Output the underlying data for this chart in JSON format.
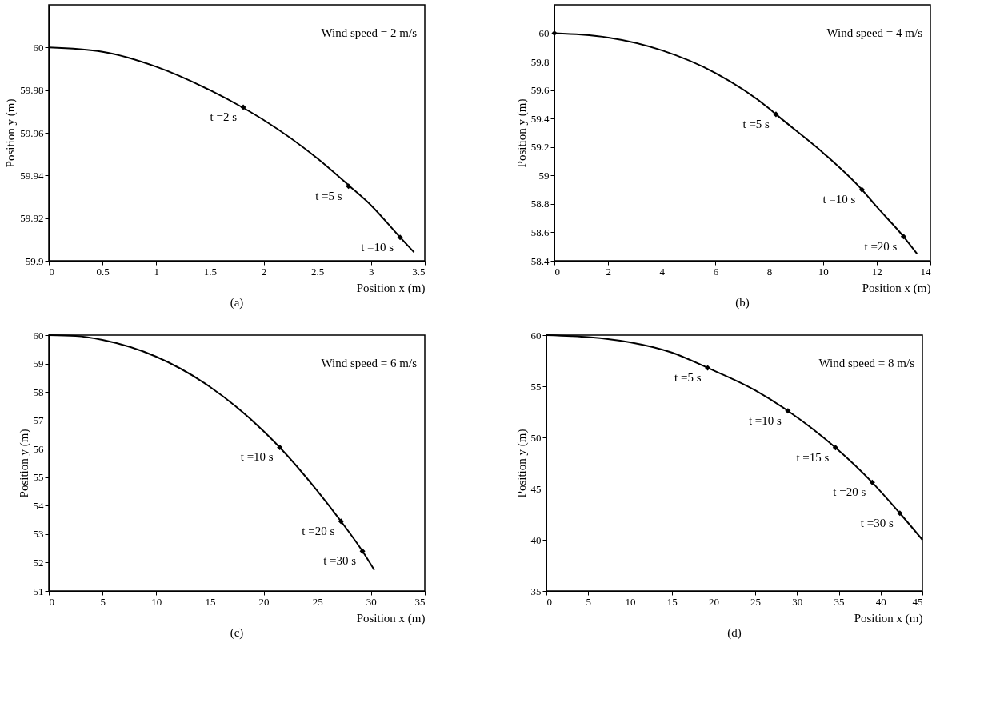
{
  "chart_data": [
    {
      "type": "line",
      "xlabel": "Position x (m)",
      "ylabel": "Position y (m)",
      "xlim": [
        0,
        3.5
      ],
      "ylim": [
        59.9,
        60.02
      ],
      "xticks": [
        0,
        0.5,
        1,
        1.5,
        2,
        2.5,
        3,
        3.5
      ],
      "yticks": [
        59.9,
        59.92,
        59.94,
        59.96,
        59.98,
        60
      ],
      "grid": false,
      "line_style": "solid",
      "series": [
        {
          "type": "line",
          "marker": "none",
          "color": "#000000",
          "x": [
            0,
            0.5,
            1,
            1.5,
            1.8,
            2,
            2.5,
            2.8,
            3,
            3.27,
            3.4
          ],
          "values": [
            60,
            59.998,
            59.991,
            59.98,
            59.972,
            59.966,
            59.948,
            59.935,
            59.926,
            59.911,
            59.904
          ]
        },
        {
          "type": "scatter",
          "marker": "diamond",
          "color": "#000000",
          "x": [
            1.81,
            2.79,
            3.27
          ],
          "values": [
            59.972,
            59.935,
            59.911
          ]
        }
      ],
      "annotations": [
        "Wind speed = 2 m/s",
        "(a)",
        {
          "text": "t =2 s",
          "x": 1.81,
          "y": 59.972
        },
        {
          "text": "t =5 s",
          "x": 2.79,
          "y": 59.935
        },
        {
          "text": "t =10 s",
          "x": 3.27,
          "y": 59.911
        }
      ]
    },
    {
      "type": "line",
      "xlabel": "Position x (m)",
      "ylabel": "Position y (m)",
      "xlim": [
        0,
        14
      ],
      "ylim": [
        58.4,
        60.2
      ],
      "xticks": [
        0,
        2,
        4,
        6,
        8,
        10,
        12,
        14
      ],
      "yticks": [
        58.4,
        58.6,
        58.8,
        59,
        59.2,
        59.4,
        59.6,
        59.8,
        60
      ],
      "grid": false,
      "line_style": "solid",
      "series": [
        {
          "type": "line",
          "marker": "none",
          "color": "#000000",
          "x": [
            0,
            1,
            2,
            4,
            6,
            8,
            8.25,
            10,
            11.45,
            12,
            13,
            13.5
          ],
          "values": [
            60,
            59.99,
            59.97,
            59.88,
            59.72,
            59.47,
            59.43,
            59.16,
            58.9,
            58.78,
            58.57,
            58.45
          ]
        },
        {
          "type": "scatter",
          "marker": "diamond",
          "color": "#000000",
          "x": [
            0,
            8.25,
            11.45,
            13.0
          ],
          "values": [
            60,
            59.43,
            58.9,
            58.57
          ]
        }
      ],
      "annotations": [
        "Wind speed = 4 m/s",
        "(b)",
        {
          "text": "t =5 s",
          "x": 8.25,
          "y": 59.43
        },
        {
          "text": "t =10 s",
          "x": 11.45,
          "y": 58.9
        },
        {
          "text": "t =20 s",
          "x": 13.0,
          "y": 58.57
        }
      ]
    },
    {
      "type": "line",
      "xlabel": "Position x (m)",
      "ylabel": "Position y (m)",
      "xlim": [
        0,
        35
      ],
      "ylim": [
        51,
        60
      ],
      "xticks": [
        0,
        5,
        10,
        15,
        20,
        25,
        30,
        35
      ],
      "yticks": [
        51,
        52,
        53,
        54,
        55,
        56,
        57,
        58,
        59,
        60
      ],
      "grid": false,
      "line_style": "solid",
      "series": [
        {
          "type": "line",
          "marker": "none",
          "color": "#000000",
          "x": [
            0,
            2.5,
            5,
            10,
            15,
            20,
            21.5,
            25,
            27.2,
            29.2,
            30.3
          ],
          "values": [
            60,
            59.97,
            59.83,
            59.24,
            58.18,
            56.62,
            56.05,
            54.52,
            53.45,
            52.4,
            51.74
          ]
        },
        {
          "type": "scatter",
          "marker": "diamond",
          "color": "#000000",
          "x": [
            21.5,
            27.2,
            29.2
          ],
          "values": [
            56.05,
            53.45,
            52.4
          ]
        }
      ],
      "annotations": [
        "Wind speed = 6 m/s",
        "(c)",
        {
          "text": "t =10 s",
          "x": 21.5,
          "y": 56.05
        },
        {
          "text": "t =20 s",
          "x": 27.2,
          "y": 53.45
        },
        {
          "text": "t =30 s",
          "x": 29.2,
          "y": 52.4
        }
      ]
    },
    {
      "type": "line",
      "xlabel": "Position x (m)",
      "ylabel": "Position y (m)",
      "xlim": [
        0,
        45
      ],
      "ylim": [
        35,
        60
      ],
      "xticks": [
        0,
        5,
        10,
        15,
        20,
        25,
        30,
        35,
        40,
        45
      ],
      "yticks": [
        35,
        40,
        45,
        50,
        55,
        60
      ],
      "grid": false,
      "line_style": "solid",
      "series": [
        {
          "type": "line",
          "marker": "none",
          "color": "#000000",
          "x": [
            0,
            3,
            5,
            10,
            15,
            19.3,
            25,
            28.9,
            34.6,
            39.0,
            42.3,
            45
          ],
          "values": [
            60,
            59.9,
            59.8,
            59.3,
            58.3,
            56.8,
            54.6,
            52.6,
            49.0,
            45.6,
            42.6,
            40
          ]
        },
        {
          "type": "scatter",
          "marker": "diamond",
          "color": "#000000",
          "x": [
            19.3,
            28.9,
            34.6,
            39.0,
            42.3
          ],
          "values": [
            56.8,
            52.6,
            49.0,
            45.6,
            42.6
          ]
        }
      ],
      "annotations": [
        "Wind speed = 8 m/s",
        "(d)",
        {
          "text": "t =5 s",
          "x": 19.3,
          "y": 56.8
        },
        {
          "text": "t =10 s",
          "x": 28.9,
          "y": 52.6
        },
        {
          "text": "t =15 s",
          "x": 34.6,
          "y": 49.0
        },
        {
          "text": "t =20 s",
          "x": 39.0,
          "y": 45.6
        },
        {
          "text": "t =30 s",
          "x": 42.3,
          "y": 42.6
        }
      ]
    }
  ]
}
